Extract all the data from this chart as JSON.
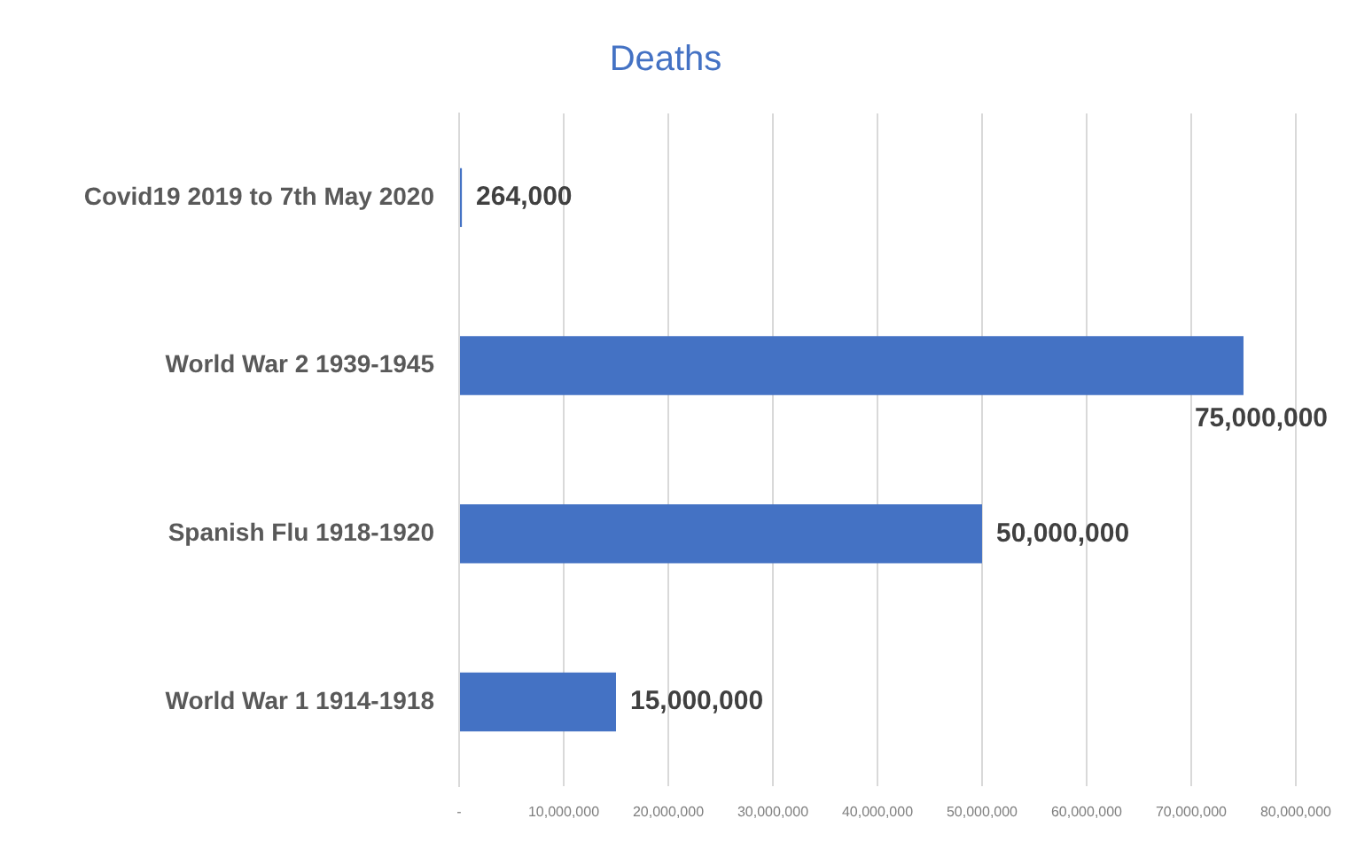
{
  "chart_data": {
    "type": "bar",
    "orientation": "horizontal",
    "title": "Deaths",
    "categories": [
      "Covid19 2019 to 7th May 2020",
      "World War 2 1939-1945",
      "Spanish Flu 1918-1920",
      "World War 1 1914-1918"
    ],
    "values": [
      264000,
      75000000,
      50000000,
      15000000
    ],
    "color": "#4472c4",
    "value_labels": [
      "264,000",
      "75,000,000",
      "50,000,000",
      "15,000,000"
    ],
    "xlim": [
      0,
      80000000
    ],
    "xticks": [
      {
        "value": 0,
        "label": "-"
      },
      {
        "value": 10000000,
        "label": "10,000,000"
      },
      {
        "value": 20000000,
        "label": "20,000,000"
      },
      {
        "value": 30000000,
        "label": "30,000,000"
      },
      {
        "value": 40000000,
        "label": "40,000,000"
      },
      {
        "value": 50000000,
        "label": "50,000,000"
      },
      {
        "value": 60000000,
        "label": "60,000,000"
      },
      {
        "value": 70000000,
        "label": "70,000,000"
      },
      {
        "value": 80000000,
        "label": "80,000,000"
      }
    ],
    "grid": "x",
    "legend": false
  }
}
